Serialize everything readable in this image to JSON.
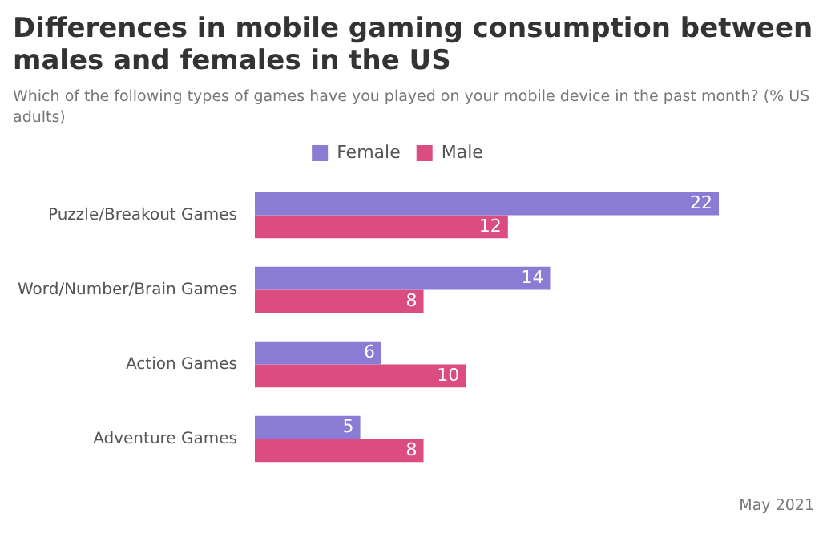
{
  "chart_data": {
    "type": "bar",
    "orientation": "horizontal",
    "title": "Differences in mobile gaming consumption between males and females in the US",
    "subtitle": "Which of the following types of games have you played on your mobile device in the past month? (% US adults)",
    "categories": [
      "Puzzle/Breakout Games",
      "Word/Number/Brain Games",
      "Action Games",
      "Adventure Games"
    ],
    "series": [
      {
        "name": "Female",
        "color": "#8a7bd4",
        "values": [
          22,
          14,
          6,
          5
        ]
      },
      {
        "name": "Male",
        "color": "#db4d80",
        "values": [
          12,
          8,
          10,
          8
        ]
      }
    ],
    "data_labels": true,
    "legend": "top",
    "annotations": [
      "May 2021"
    ]
  }
}
